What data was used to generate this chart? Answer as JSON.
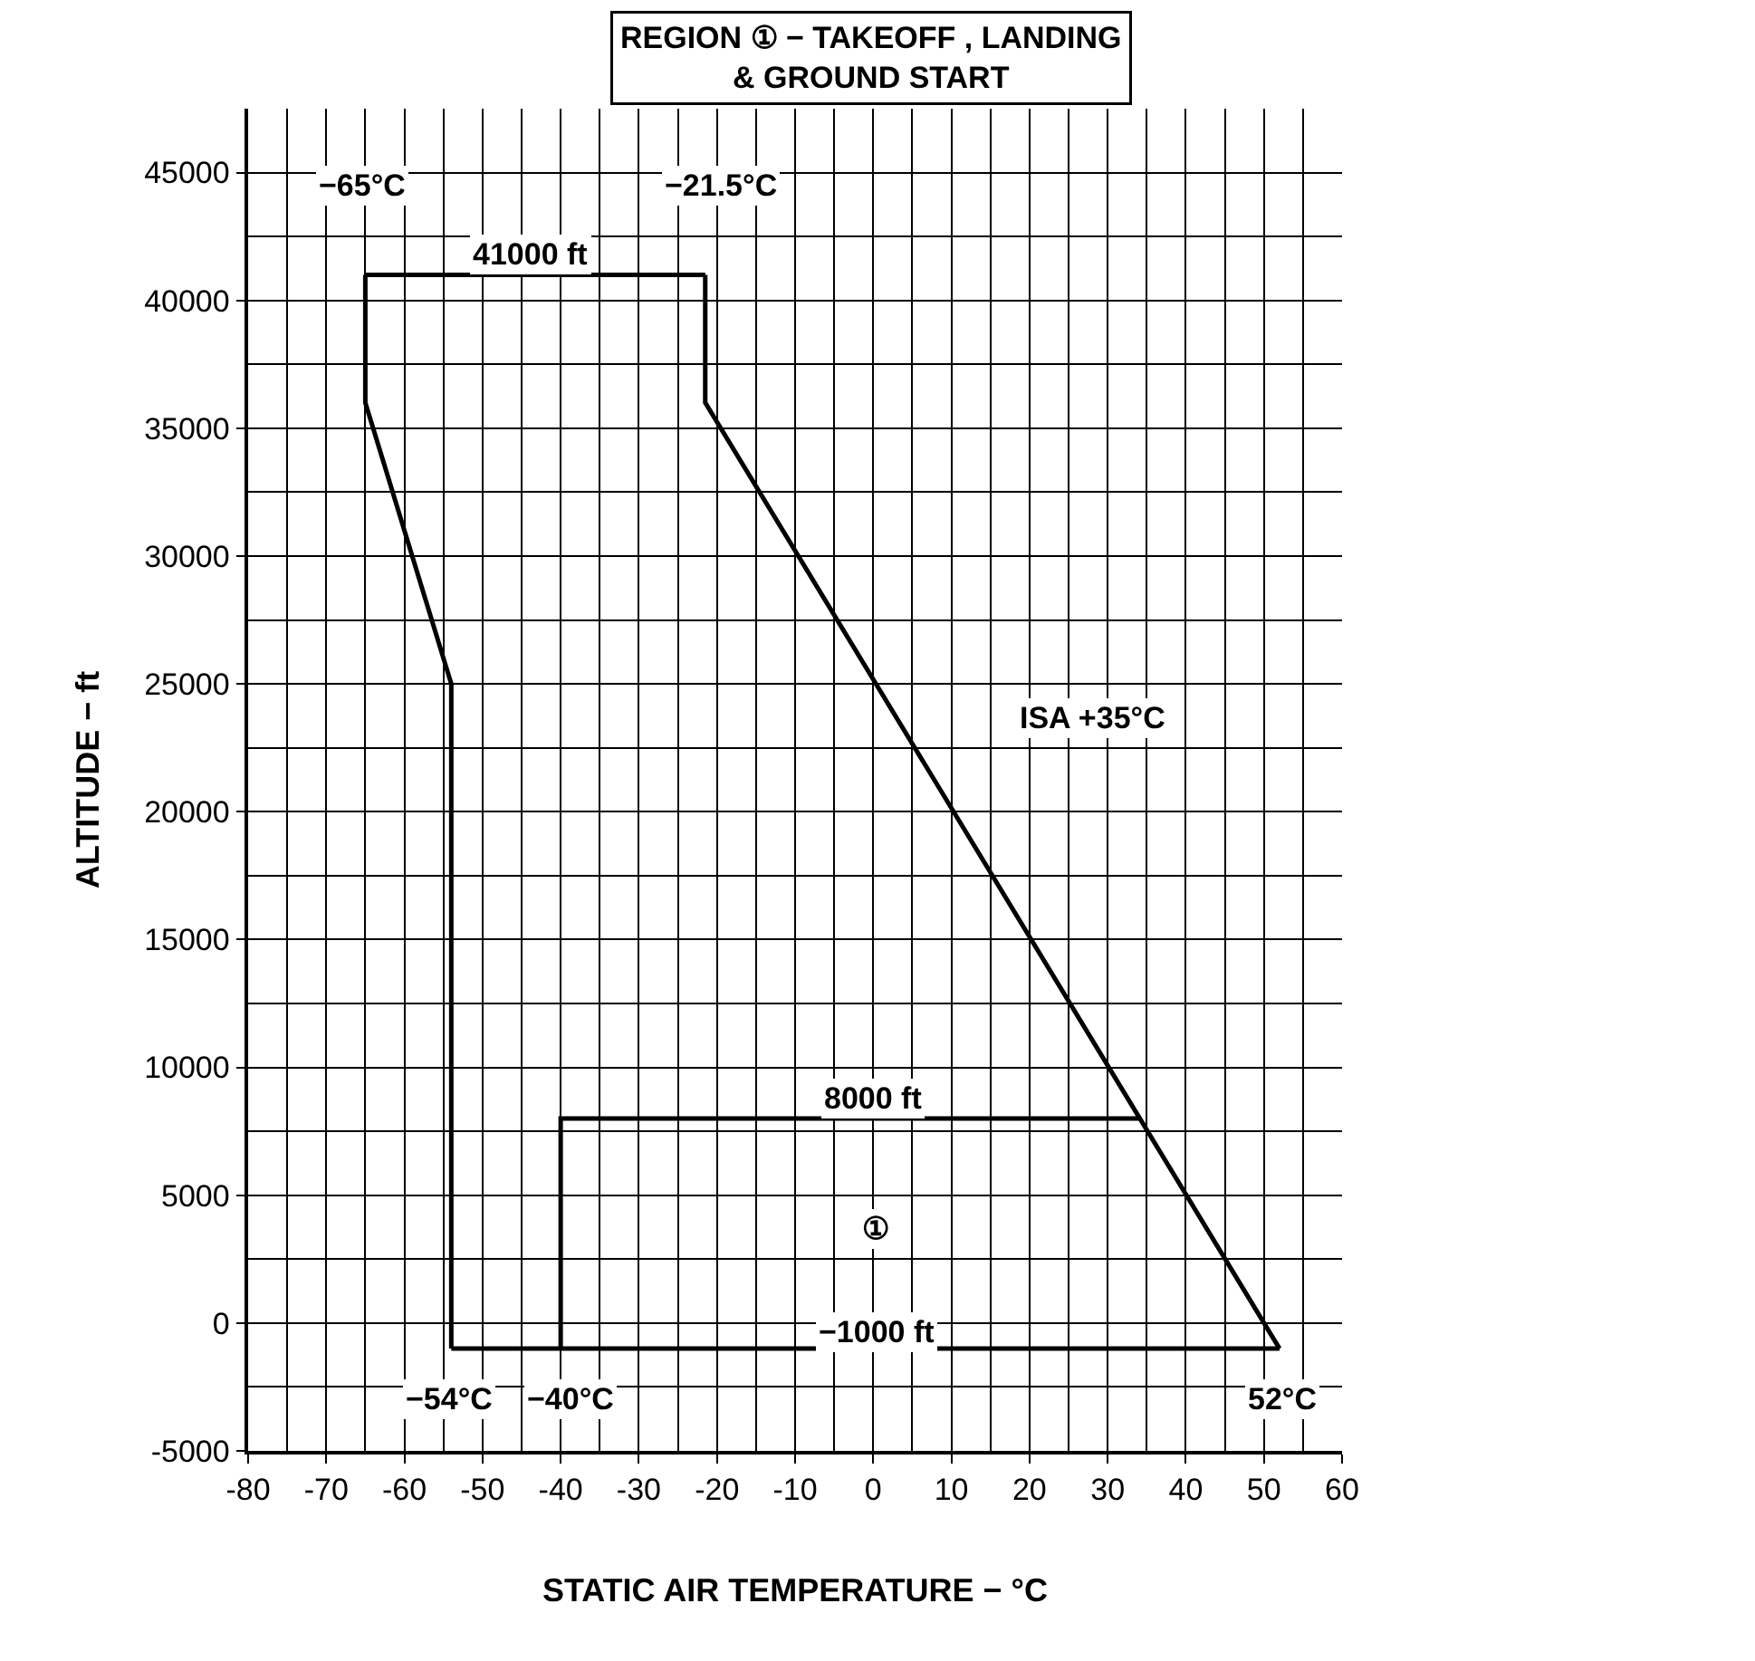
{
  "chart_data": {
    "type": "line",
    "title": "REGION ① − TAKEOFF , LANDING\n& GROUND START",
    "xlabel": "STATIC AIR TEMPERATURE − °C",
    "ylabel": "ALTITUDE − ft",
    "series": [
      {
        "color": "#000000",
        "x": [
          -65,
          -65,
          -54,
          -54
        ],
        "values": [
          41000,
          36000,
          25000,
          -1000
        ]
      },
      {
        "color": "#000000",
        "x": [
          -65,
          -21.5
        ],
        "values": [
          41000,
          41000
        ]
      },
      {
        "color": "#000000",
        "x": [
          -21.5,
          -21.5,
          52
        ],
        "values": [
          41000,
          36000,
          -1000
        ]
      },
      {
        "color": "#000000",
        "x": [
          -54,
          52
        ],
        "values": [
          -1000,
          -1000
        ]
      },
      {
        "color": "#000000",
        "x": [
          -40,
          -40,
          34
        ],
        "values": [
          -1000,
          8000,
          8000
        ]
      }
    ],
    "xlim": [
      -80,
      60
    ],
    "xticks": [
      -80,
      -70,
      -60,
      -50,
      -40,
      -30,
      -20,
      -10,
      0,
      10,
      20,
      30,
      40,
      50,
      60
    ],
    "ylim": [
      -5000,
      47500
    ],
    "yticks": [
      -5000,
      0,
      5000,
      10000,
      15000,
      20000,
      25000,
      30000,
      35000,
      40000,
      45000
    ],
    "grid": true,
    "marker": "none",
    "line_style": "solid",
    "annotations": [
      "−65°C",
      "−21.5°C",
      "41000 ft",
      "ISA +35°C",
      "8000 ft",
      "①",
      "−1000 ft",
      "−54°C",
      "−40°C",
      "52°C"
    ]
  }
}
